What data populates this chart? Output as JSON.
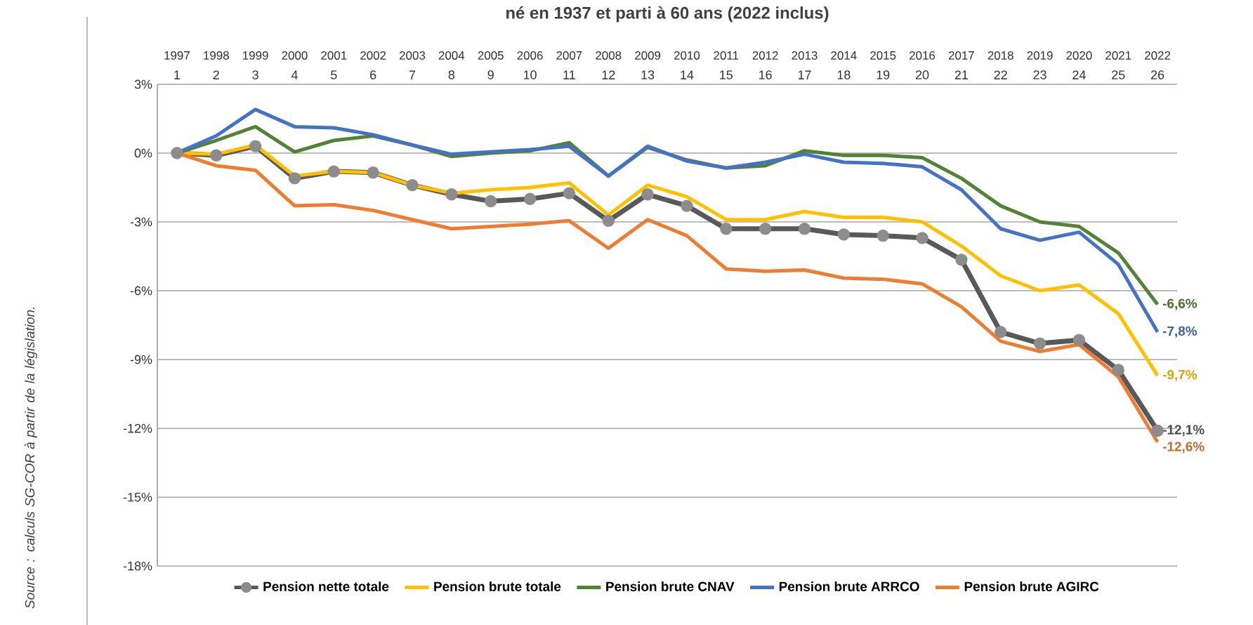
{
  "chart_data": {
    "type": "line",
    "title": "né en 1937 et parti à 60 ans (2022 inclus)",
    "x": [
      1,
      2,
      3,
      4,
      5,
      6,
      7,
      8,
      9,
      10,
      11,
      12,
      13,
      14,
      15,
      16,
      17,
      18,
      19,
      20,
      21,
      22,
      23,
      24,
      25,
      26
    ],
    "xlim": [
      0.5,
      26.5
    ],
    "xticks": [
      1,
      2,
      3,
      4,
      5,
      6,
      7,
      8,
      9,
      10,
      11,
      12,
      13,
      14,
      15,
      16,
      17,
      18,
      19,
      20,
      21,
      22,
      23,
      24,
      25,
      26
    ],
    "x2lim": [
      1996.5,
      2022.5
    ],
    "x2ticks": [
      1997,
      1998,
      1999,
      2000,
      2001,
      2002,
      2003,
      2004,
      2005,
      2006,
      2007,
      2008,
      2009,
      2010,
      2011,
      2012,
      2013,
      2014,
      2015,
      2016,
      2017,
      2018,
      2019,
      2020,
      2021,
      2022
    ],
    "ylim": [
      -18,
      3
    ],
    "yticks": [
      {
        "value": 3,
        "label": "3%"
      },
      {
        "value": 0,
        "label": "0%"
      },
      {
        "value": -3,
        "label": "-3%"
      },
      {
        "value": -6,
        "label": "-6%"
      },
      {
        "value": -9,
        "label": "-9%"
      },
      {
        "value": -12,
        "label": "-12%"
      },
      {
        "value": -15,
        "label": "-15%"
      },
      {
        "value": -18,
        "label": "-18%"
      }
    ],
    "grid": "y",
    "legend": "bottom",
    "line_style": "solid",
    "annotations": [
      "Source : calculs SG-COR à partir de la législation."
    ],
    "series": [
      {
        "name": "Pension nette totale",
        "color": "#595959",
        "marker": "circle",
        "values": [
          0,
          -0.1,
          0.3,
          -1.1,
          -0.8,
          -0.85,
          -1.4,
          -1.8,
          -2.1,
          -2.0,
          -1.75,
          -2.95,
          -1.8,
          -2.3,
          -3.3,
          -3.3,
          -3.3,
          -3.55,
          -3.6,
          -3.7,
          -4.65,
          -7.8,
          -8.3,
          -8.15,
          -9.45,
          -12.1
        ],
        "value_labels": [
          null,
          null,
          null,
          null,
          null,
          null,
          null,
          null,
          null,
          null,
          null,
          null,
          null,
          null,
          null,
          null,
          null,
          null,
          null,
          null,
          null,
          null,
          null,
          null,
          null,
          "-12,1%"
        ]
      },
      {
        "name": "Pension brute totale",
        "color": "#ffc000",
        "marker": "none",
        "values": [
          0,
          -0.05,
          0.35,
          -1.0,
          -0.8,
          -0.85,
          -1.4,
          -1.75,
          -1.6,
          -1.5,
          -1.3,
          -2.7,
          -1.4,
          -1.9,
          -2.9,
          -2.9,
          -2.55,
          -2.8,
          -2.8,
          -3.0,
          -4.05,
          -5.35,
          -6.0,
          -5.75,
          -7.0,
          -9.7
        ],
        "value_labels": [
          null,
          null,
          null,
          null,
          null,
          null,
          null,
          null,
          null,
          null,
          null,
          null,
          null,
          null,
          null,
          null,
          null,
          null,
          null,
          null,
          null,
          null,
          null,
          null,
          null,
          "-9,7%"
        ]
      },
      {
        "name": "Pension brute CNAV",
        "color": "#548235",
        "marker": "none",
        "values": [
          0,
          0.55,
          1.15,
          0.05,
          0.55,
          0.75,
          0.35,
          -0.15,
          0.0,
          0.1,
          0.45,
          -1.0,
          0.25,
          -0.3,
          -0.65,
          -0.55,
          0.1,
          -0.1,
          -0.1,
          -0.2,
          -1.1,
          -2.3,
          -3.0,
          -3.2,
          -4.35,
          -6.6
        ],
        "value_labels": [
          null,
          null,
          null,
          null,
          null,
          null,
          null,
          null,
          null,
          null,
          null,
          null,
          null,
          null,
          null,
          null,
          null,
          null,
          null,
          null,
          null,
          null,
          null,
          null,
          null,
          "-6,6%"
        ]
      },
      {
        "name": "Pension brute ARRCO",
        "color": "#4472c4",
        "marker": "none",
        "values": [
          0,
          0.75,
          1.9,
          1.15,
          1.1,
          0.8,
          0.35,
          -0.05,
          0.05,
          0.15,
          0.3,
          -1.0,
          0.3,
          -0.35,
          -0.65,
          -0.4,
          -0.05,
          -0.4,
          -0.45,
          -0.6,
          -1.6,
          -3.3,
          -3.8,
          -3.45,
          -4.85,
          -7.8
        ],
        "value_labels": [
          null,
          null,
          null,
          null,
          null,
          null,
          null,
          null,
          null,
          null,
          null,
          null,
          null,
          null,
          null,
          null,
          null,
          null,
          null,
          null,
          null,
          null,
          null,
          null,
          null,
          "-7,8%"
        ]
      },
      {
        "name": "Pension brute AGIRC",
        "color": "#ed7d31",
        "marker": "none",
        "values": [
          0,
          -0.55,
          -0.75,
          -2.3,
          -2.25,
          -2.5,
          -2.9,
          -3.3,
          -3.2,
          -3.1,
          -2.95,
          -4.15,
          -2.9,
          -3.6,
          -5.05,
          -5.15,
          -5.1,
          -5.45,
          -5.5,
          -5.7,
          -6.7,
          -8.2,
          -8.65,
          -8.35,
          -9.75,
          -12.6
        ],
        "value_labels": [
          null,
          null,
          null,
          null,
          null,
          null,
          null,
          null,
          null,
          null,
          null,
          null,
          null,
          null,
          null,
          null,
          null,
          null,
          null,
          null,
          null,
          null,
          null,
          null,
          null,
          "-12,6%"
        ]
      }
    ]
  }
}
